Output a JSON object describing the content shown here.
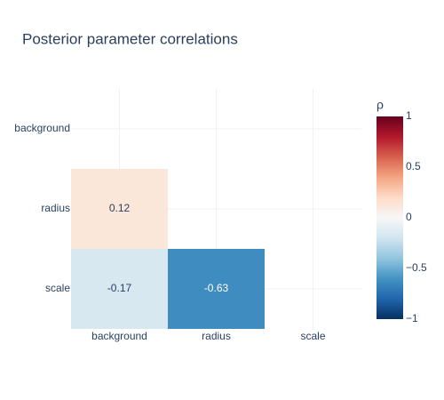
{
  "chart_data": {
    "type": "heatmap",
    "title": "Posterior parameter correlations",
    "x": [
      "background",
      "radius",
      "scale"
    ],
    "y": [
      "background",
      "radius",
      "scale"
    ],
    "values": [
      [
        null,
        null,
        null
      ],
      [
        0.12,
        null,
        null
      ],
      [
        -0.17,
        -0.63,
        null
      ]
    ],
    "colorbar_title": "ρ",
    "zlim": [
      -1,
      1
    ],
    "zticks": [
      1,
      0.5,
      0,
      {
        "value": -0.5,
        "label": "−0.5"
      },
      {
        "value": -1,
        "label": "−1"
      }
    ],
    "colorscale": [
      "#053061",
      "#2166ac",
      "#4393c3",
      "#92c5de",
      "#d1e5f0",
      "#f7f7f7",
      "#fddbc7",
      "#f4a582",
      "#d6604d",
      "#b2182b",
      "#67001f"
    ],
    "grid": true
  }
}
